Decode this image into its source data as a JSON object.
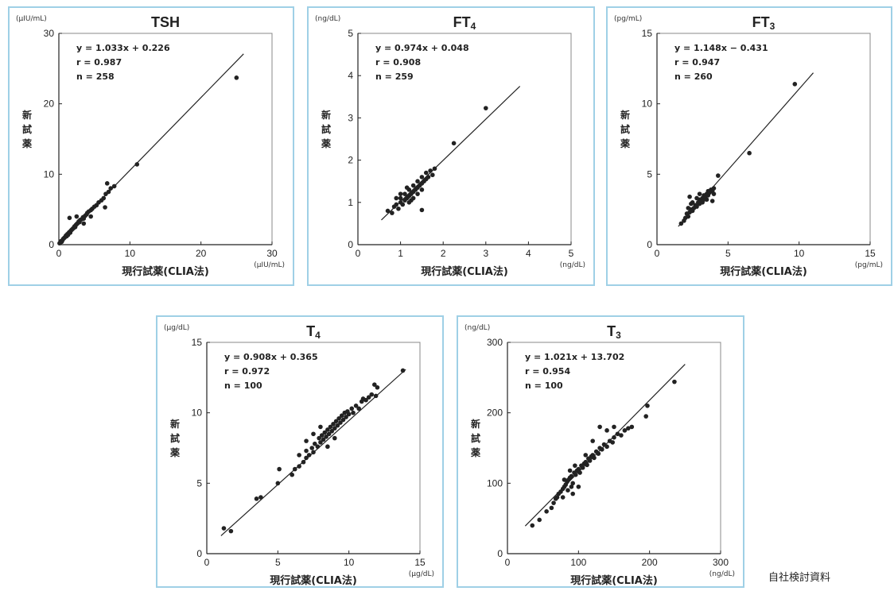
{
  "footer": "自社検討資料",
  "style": {
    "panel_border": "#9fd0e6",
    "point_color": "#222222",
    "line_color": "#222222"
  },
  "chart_data": [
    {
      "type": "scatter",
      "title": "TSH",
      "xlabel": "現行試薬(CLIA法)",
      "ylabel": "新試薬",
      "unit_x": "(μIU/mL)",
      "unit_y": "(μIU/mL)",
      "xlim": [
        0,
        30
      ],
      "ylim": [
        0,
        30
      ],
      "xticks": [
        0,
        10,
        20,
        30
      ],
      "yticks": [
        0,
        10,
        20,
        30
      ],
      "regression": {
        "slope": 1.033,
        "intercept": 0.226
      },
      "stats": [
        "y = 1.033x + 0.226",
        "r = 0.987",
        "n = 258"
      ],
      "line_range": [
        0,
        26
      ],
      "points": [
        [
          0.1,
          0.2
        ],
        [
          0.2,
          0.3
        ],
        [
          0.3,
          0.5
        ],
        [
          0.4,
          0.4
        ],
        [
          0.5,
          0.6
        ],
        [
          0.6,
          0.8
        ],
        [
          0.7,
          0.9
        ],
        [
          0.8,
          1.0
        ],
        [
          0.9,
          1.1
        ],
        [
          1.0,
          1.3
        ],
        [
          1.1,
          1.2
        ],
        [
          1.2,
          1.5
        ],
        [
          1.3,
          1.4
        ],
        [
          1.4,
          1.7
        ],
        [
          1.5,
          1.8
        ],
        [
          1.6,
          1.7
        ],
        [
          1.7,
          2.0
        ],
        [
          1.8,
          2.1
        ],
        [
          1.9,
          2.2
        ],
        [
          2.0,
          2.3
        ],
        [
          2.1,
          2.4
        ],
        [
          2.2,
          2.6
        ],
        [
          2.3,
          2.5
        ],
        [
          2.4,
          2.8
        ],
        [
          2.5,
          2.9
        ],
        [
          2.6,
          3.0
        ],
        [
          2.7,
          3.1
        ],
        [
          2.8,
          3.3
        ],
        [
          2.9,
          3.2
        ],
        [
          3.0,
          3.5
        ],
        [
          3.2,
          3.6
        ],
        [
          3.4,
          3.9
        ],
        [
          3.5,
          3.7
        ],
        [
          3.7,
          4.1
        ],
        [
          3.9,
          4.3
        ],
        [
          4.0,
          4.5
        ],
        [
          4.2,
          4.7
        ],
        [
          4.5,
          4.9
        ],
        [
          4.7,
          5.1
        ],
        [
          5.0,
          5.4
        ],
        [
          5.3,
          5.6
        ],
        [
          5.6,
          6.0
        ],
        [
          6.0,
          6.3
        ],
        [
          6.3,
          6.6
        ],
        [
          6.6,
          7.2
        ],
        [
          6.8,
          8.7
        ],
        [
          7.0,
          7.5
        ],
        [
          7.3,
          8.0
        ],
        [
          7.8,
          8.3
        ],
        [
          6.5,
          5.3
        ],
        [
          1.5,
          3.8
        ],
        [
          2.5,
          4.0
        ],
        [
          3.5,
          3.0
        ],
        [
          4.5,
          4.0
        ],
        [
          11.0,
          11.4
        ],
        [
          25.0,
          23.7
        ]
      ]
    },
    {
      "type": "scatter",
      "title": "FT4",
      "xlabel": "現行試薬(CLIA法)",
      "ylabel": "新試薬",
      "unit_x": "(ng/dL)",
      "unit_y": "(ng/dL)",
      "xlim": [
        0,
        5
      ],
      "ylim": [
        0,
        5
      ],
      "xticks": [
        0,
        1,
        2,
        3,
        4,
        5
      ],
      "yticks": [
        0,
        1,
        2,
        3,
        4,
        5
      ],
      "regression": {
        "slope": 0.974,
        "intercept": 0.048
      },
      "stats": [
        "y = 0.974x + 0.048",
        "r = 0.908",
        "n = 259"
      ],
      "line_range": [
        0.55,
        3.8
      ],
      "points": [
        [
          0.7,
          0.8
        ],
        [
          0.8,
          0.75
        ],
        [
          0.85,
          0.9
        ],
        [
          0.9,
          0.95
        ],
        [
          0.95,
          0.85
        ],
        [
          1.0,
          1.0
        ],
        [
          1.0,
          1.1
        ],
        [
          1.05,
          0.95
        ],
        [
          1.1,
          1.05
        ],
        [
          1.1,
          1.2
        ],
        [
          1.15,
          1.1
        ],
        [
          1.2,
          1.15
        ],
        [
          1.2,
          1.3
        ],
        [
          1.25,
          1.2
        ],
        [
          1.25,
          1.05
        ],
        [
          1.3,
          1.25
        ],
        [
          1.3,
          1.4
        ],
        [
          1.35,
          1.3
        ],
        [
          1.4,
          1.35
        ],
        [
          1.4,
          1.5
        ],
        [
          1.45,
          1.4
        ],
        [
          1.5,
          1.45
        ],
        [
          1.5,
          1.6
        ],
        [
          1.55,
          1.5
        ],
        [
          1.6,
          1.55
        ],
        [
          1.6,
          1.7
        ],
        [
          1.65,
          1.6
        ],
        [
          1.7,
          1.75
        ],
        [
          1.2,
          1.0
        ],
        [
          1.3,
          1.1
        ],
        [
          1.15,
          1.35
        ],
        [
          1.0,
          1.2
        ],
        [
          0.9,
          1.1
        ],
        [
          1.4,
          1.2
        ],
        [
          1.5,
          1.3
        ],
        [
          1.8,
          1.8
        ],
        [
          1.75,
          1.65
        ],
        [
          1.5,
          0.82
        ],
        [
          2.25,
          2.4
        ],
        [
          3.0,
          3.23
        ]
      ]
    },
    {
      "type": "scatter",
      "title": "FT3",
      "xlabel": "現行試薬(CLIA法)",
      "ylabel": "新試薬",
      "unit_x": "(pg/mL)",
      "unit_y": "(pg/mL)",
      "xlim": [
        0,
        15
      ],
      "ylim": [
        0,
        15
      ],
      "xticks": [
        0,
        5,
        10,
        15
      ],
      "yticks": [
        0,
        5,
        10,
        15
      ],
      "regression": {
        "slope": 1.148,
        "intercept": -0.431
      },
      "stats": [
        "y = 1.148x − 0.431",
        "r = 0.947",
        "n = 260"
      ],
      "line_range": [
        1.5,
        11.0
      ],
      "points": [
        [
          1.7,
          1.5
        ],
        [
          1.9,
          1.7
        ],
        [
          2.0,
          1.9
        ],
        [
          2.1,
          2.2
        ],
        [
          2.2,
          2.0
        ],
        [
          2.3,
          2.3
        ],
        [
          2.4,
          2.5
        ],
        [
          2.5,
          2.4
        ],
        [
          2.6,
          2.6
        ],
        [
          2.7,
          2.8
        ],
        [
          2.8,
          2.7
        ],
        [
          2.9,
          3.0
        ],
        [
          3.0,
          2.9
        ],
        [
          3.0,
          3.2
        ],
        [
          3.1,
          3.1
        ],
        [
          3.2,
          3.3
        ],
        [
          3.3,
          3.2
        ],
        [
          3.3,
          3.5
        ],
        [
          3.4,
          3.4
        ],
        [
          3.5,
          3.6
        ],
        [
          3.6,
          3.5
        ],
        [
          3.6,
          3.8
        ],
        [
          3.7,
          3.7
        ],
        [
          3.8,
          3.9
        ],
        [
          3.9,
          3.8
        ],
        [
          4.0,
          4.0
        ],
        [
          2.5,
          3.0
        ],
        [
          2.8,
          3.3
        ],
        [
          3.2,
          3.0
        ],
        [
          3.5,
          3.2
        ],
        [
          2.4,
          2.9
        ],
        [
          3.0,
          3.6
        ],
        [
          2.2,
          2.6
        ],
        [
          4.0,
          3.6
        ],
        [
          2.3,
          3.4
        ],
        [
          3.9,
          3.1
        ],
        [
          4.3,
          4.9
        ],
        [
          6.5,
          6.5
        ],
        [
          9.7,
          11.4
        ]
      ]
    },
    {
      "type": "scatter",
      "title": "T4",
      "xlabel": "現行試薬(CLIA法)",
      "ylabel": "新試薬",
      "unit_x": "(μg/dL)",
      "unit_y": "(μg/dL)",
      "xlim": [
        0,
        15
      ],
      "ylim": [
        0,
        15
      ],
      "xticks": [
        0,
        5,
        10,
        15
      ],
      "yticks": [
        0,
        5,
        10,
        15
      ],
      "regression": {
        "slope": 0.908,
        "intercept": 0.365
      },
      "stats": [
        "y = 0.908x + 0.365",
        "r = 0.972",
        "n = 100"
      ],
      "line_range": [
        1.0,
        14.0
      ],
      "points": [
        [
          1.2,
          1.8
        ],
        [
          1.7,
          1.6
        ],
        [
          3.5,
          3.9
        ],
        [
          3.8,
          4.0
        ],
        [
          5.0,
          5.0
        ],
        [
          5.1,
          6.0
        ],
        [
          6.0,
          5.6
        ],
        [
          6.2,
          6.0
        ],
        [
          6.5,
          6.2
        ],
        [
          6.8,
          6.5
        ],
        [
          7.0,
          6.8
        ],
        [
          7.0,
          7.3
        ],
        [
          7.2,
          7.0
        ],
        [
          7.4,
          7.5
        ],
        [
          7.5,
          7.2
        ],
        [
          7.6,
          7.8
        ],
        [
          7.8,
          7.6
        ],
        [
          7.9,
          8.2
        ],
        [
          8.0,
          7.9
        ],
        [
          8.1,
          8.4
        ],
        [
          8.2,
          8.1
        ],
        [
          8.3,
          8.6
        ],
        [
          8.4,
          8.3
        ],
        [
          8.5,
          8.8
        ],
        [
          8.6,
          8.5
        ],
        [
          8.7,
          9.0
        ],
        [
          8.8,
          8.7
        ],
        [
          8.9,
          9.2
        ],
        [
          9.0,
          8.9
        ],
        [
          9.1,
          9.4
        ],
        [
          9.2,
          9.1
        ],
        [
          9.3,
          9.6
        ],
        [
          9.4,
          9.3
        ],
        [
          9.5,
          9.8
        ],
        [
          9.6,
          9.5
        ],
        [
          9.7,
          10.0
        ],
        [
          9.8,
          9.7
        ],
        [
          9.9,
          10.1
        ],
        [
          10.0,
          9.9
        ],
        [
          10.2,
          10.3
        ],
        [
          10.3,
          10.0
        ],
        [
          10.5,
          10.5
        ],
        [
          10.7,
          10.3
        ],
        [
          10.9,
          10.8
        ],
        [
          11.0,
          11.0
        ],
        [
          11.2,
          10.9
        ],
        [
          11.4,
          11.1
        ],
        [
          11.6,
          11.3
        ],
        [
          11.8,
          12.0
        ],
        [
          11.9,
          11.2
        ],
        [
          7.5,
          8.5
        ],
        [
          8.0,
          9.0
        ],
        [
          7.0,
          8.0
        ],
        [
          9.0,
          8.2
        ],
        [
          8.5,
          7.6
        ],
        [
          6.5,
          7.0
        ],
        [
          12.0,
          11.8
        ],
        [
          13.8,
          13.0
        ]
      ]
    },
    {
      "type": "scatter",
      "title": "T3",
      "xlabel": "現行試薬(CLIA法)",
      "ylabel": "新試薬",
      "unit_x": "(ng/dL)",
      "unit_y": "(ng/dL)",
      "xlim": [
        0,
        300
      ],
      "ylim": [
        0,
        300
      ],
      "xticks": [
        0,
        100,
        200,
        300
      ],
      "yticks": [
        0,
        100,
        200,
        300
      ],
      "regression": {
        "slope": 1.021,
        "intercept": 13.702
      },
      "stats": [
        "y = 1.021x + 13.702",
        "r = 0.954",
        "n = 100"
      ],
      "line_range": [
        25,
        250
      ],
      "points": [
        [
          35,
          40
        ],
        [
          45,
          48
        ],
        [
          55,
          60
        ],
        [
          62,
          65
        ],
        [
          65,
          72
        ],
        [
          68,
          78
        ],
        [
          70,
          80
        ],
        [
          72,
          85
        ],
        [
          75,
          88
        ],
        [
          78,
          92
        ],
        [
          80,
          95
        ],
        [
          82,
          98
        ],
        [
          84,
          102
        ],
        [
          86,
          105
        ],
        [
          88,
          108
        ],
        [
          90,
          110
        ],
        [
          92,
          100
        ],
        [
          94,
          115
        ],
        [
          96,
          112
        ],
        [
          98,
          118
        ],
        [
          100,
          120
        ],
        [
          102,
          115
        ],
        [
          104,
          125
        ],
        [
          106,
          122
        ],
        [
          108,
          128
        ],
        [
          110,
          130
        ],
        [
          112,
          126
        ],
        [
          114,
          135
        ],
        [
          116,
          132
        ],
        [
          118,
          138
        ],
        [
          120,
          140
        ],
        [
          122,
          136
        ],
        [
          125,
          145
        ],
        [
          128,
          142
        ],
        [
          130,
          150
        ],
        [
          133,
          148
        ],
        [
          136,
          155
        ],
        [
          140,
          152
        ],
        [
          144,
          160
        ],
        [
          148,
          158
        ],
        [
          150,
          165
        ],
        [
          155,
          170
        ],
        [
          160,
          168
        ],
        [
          165,
          175
        ],
        [
          170,
          178
        ],
        [
          85,
          90
        ],
        [
          88,
          118
        ],
        [
          92,
          85
        ],
        [
          95,
          125
        ],
        [
          80,
          105
        ],
        [
          78,
          80
        ],
        [
          90,
          95
        ],
        [
          100,
          95
        ],
        [
          110,
          140
        ],
        [
          120,
          160
        ],
        [
          130,
          180
        ],
        [
          140,
          175
        ],
        [
          150,
          180
        ],
        [
          175,
          180
        ],
        [
          195,
          195
        ],
        [
          197,
          210
        ],
        [
          235,
          244
        ]
      ]
    }
  ]
}
